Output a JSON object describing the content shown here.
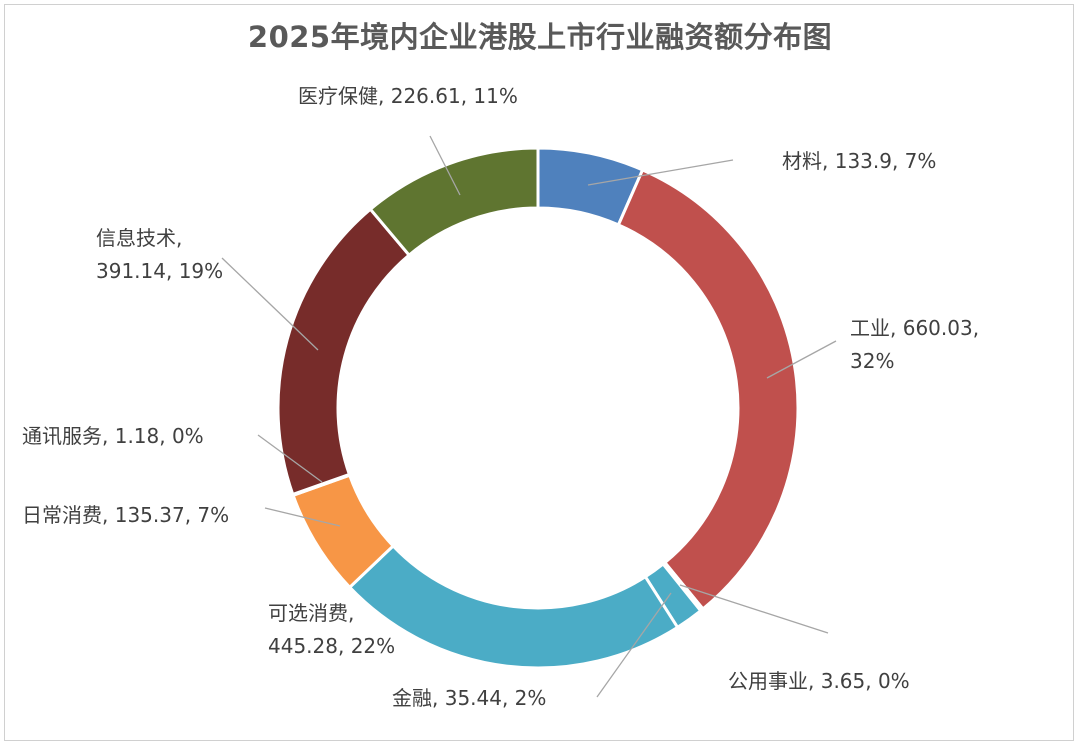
{
  "chart_data": {
    "type": "pie",
    "variant": "doughnut",
    "title": "2025年境内企业港股上市行业融资额分布图",
    "legend": "none",
    "slices": [
      {
        "name": "材料",
        "value": 133.9,
        "percent": "7%",
        "color": "#4f81bd",
        "label_lines": [
          "材料, 133.9, 7%"
        ]
      },
      {
        "name": "工业",
        "value": 660.03,
        "percent": "32%",
        "color": "#c0504d",
        "label_lines": [
          "工业, 660.03,",
          "32%"
        ]
      },
      {
        "name": "公用事业",
        "value": 3.65,
        "percent": "0%",
        "color": "#7b5ea7",
        "label_lines": [
          "公用事业, 3.65, 0%"
        ]
      },
      {
        "name": "金融",
        "value": 35.44,
        "percent": "2%",
        "color": "#4bacc6",
        "label_lines": [
          "金融, 35.44, 2%"
        ]
      },
      {
        "name": "可选消费",
        "value": 445.28,
        "percent": "22%",
        "color": "#4bacc6",
        "label_lines": [
          "可选消费,",
          "445.28, 22%"
        ]
      },
      {
        "name": "日常消费",
        "value": 135.37,
        "percent": "7%",
        "color": "#f79646",
        "label_lines": [
          "日常消费, 135.37, 7%"
        ]
      },
      {
        "name": "通讯服务",
        "value": 1.18,
        "percent": "0%",
        "color": "#c0504d",
        "label_lines": [
          "通讯服务, 1.18, 0%"
        ]
      },
      {
        "name": "信息技术",
        "value": 391.14,
        "percent": "19%",
        "color": "#772c2a",
        "label_lines": [
          "信息技术,",
          "391.14, 19%"
        ]
      },
      {
        "name": "医疗保健",
        "value": 226.61,
        "percent": "11%",
        "color": "#5f7530",
        "label_lines": [
          "医疗保健, 226.61, 11%"
        ]
      }
    ]
  }
}
